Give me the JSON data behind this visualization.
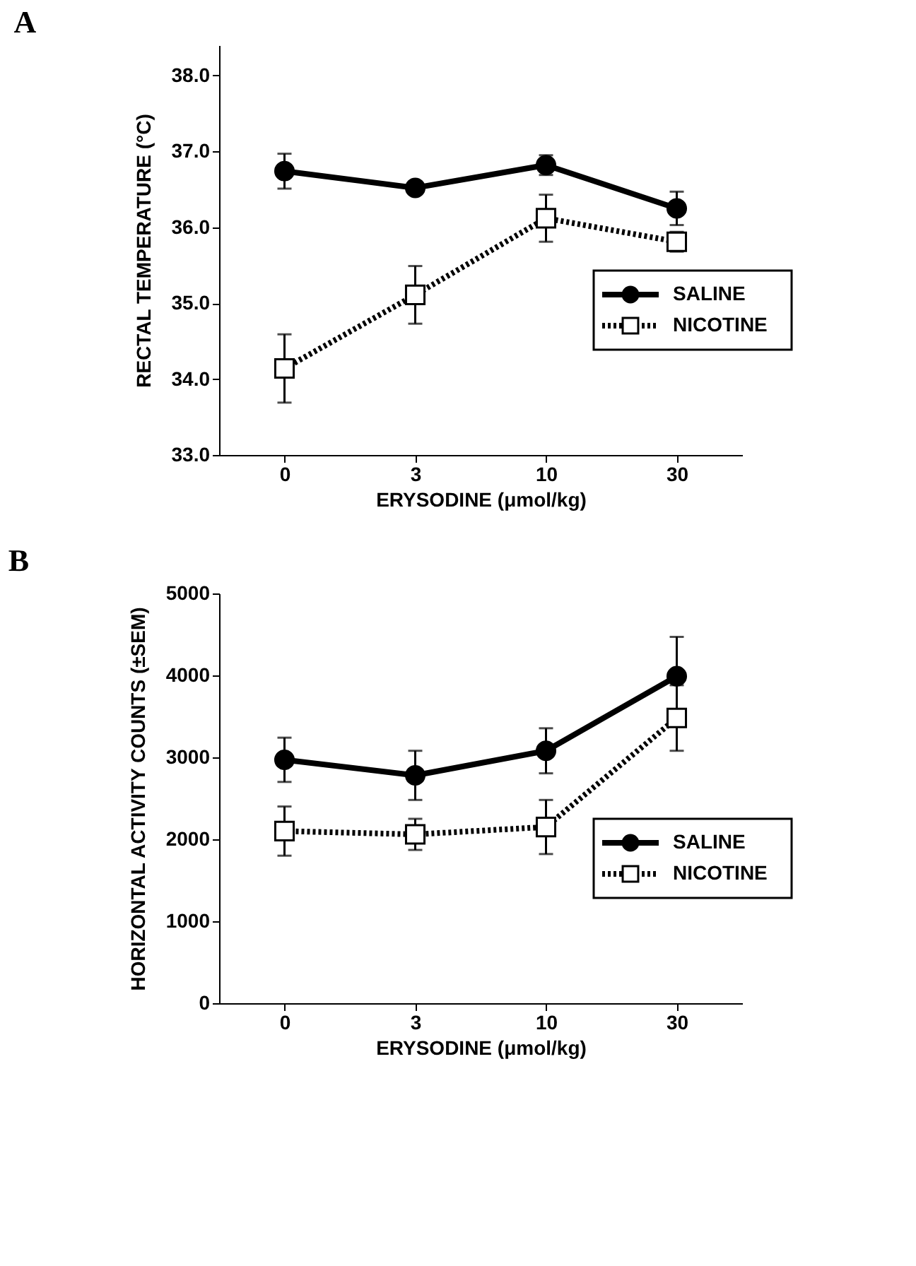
{
  "chart_data": [
    {
      "type": "line",
      "title": "A",
      "xlabel": "ERYSODINE (μmol/kg)",
      "ylabel": "RECTAL TEMPERATURE (°C)",
      "categories": [
        "0",
        "3",
        "10",
        "30"
      ],
      "ylim": [
        33,
        38.4
      ],
      "yticks": [
        {
          "value": 33,
          "label": "33.0"
        },
        {
          "value": 34,
          "label": "34.0"
        },
        {
          "value": 35,
          "label": "35.0"
        },
        {
          "value": 36,
          "label": "36.0"
        },
        {
          "value": 37,
          "label": "37.0"
        },
        {
          "value": 38,
          "label": "38.0"
        }
      ],
      "legend": "right",
      "grid": false,
      "series": [
        {
          "name": "SALINE",
          "color": "#000000",
          "marker": "circle",
          "line_style": "solid",
          "values": [
            36.74,
            36.52,
            36.82,
            36.25
          ],
          "errors": [
            0.23,
            null,
            0.13,
            0.22
          ]
        },
        {
          "name": "NICOTINE",
          "color": "#000000",
          "marker": "square",
          "line_style": "dotted",
          "values": [
            34.14,
            35.11,
            36.12,
            35.81
          ],
          "errors": [
            0.45,
            0.38,
            0.31,
            0.13
          ]
        }
      ]
    },
    {
      "type": "line",
      "title": "B",
      "xlabel": "ERYSODINE (μmol/kg)",
      "ylabel": "HORIZONTAL ACTIVITY COUNTS (±SEM)",
      "categories": [
        "0",
        "3",
        "10",
        "30"
      ],
      "ylim": [
        0,
        5000
      ],
      "yticks": [
        0,
        1000,
        2000,
        3000,
        4000,
        5000
      ],
      "legend": "right",
      "grid": false,
      "series": [
        {
          "name": "SALINE",
          "color": "#000000",
          "marker": "circle",
          "line_style": "solid",
          "values": [
            2970,
            2780,
            3080,
            3990
          ],
          "errors": [
            270,
            300,
            275,
            480
          ]
        },
        {
          "name": "NICOTINE",
          "color": "#000000",
          "marker": "square",
          "line_style": "dotted",
          "values": [
            2100,
            2060,
            2150,
            3480
          ],
          "errors": [
            300,
            190,
            330,
            400
          ]
        }
      ]
    }
  ]
}
